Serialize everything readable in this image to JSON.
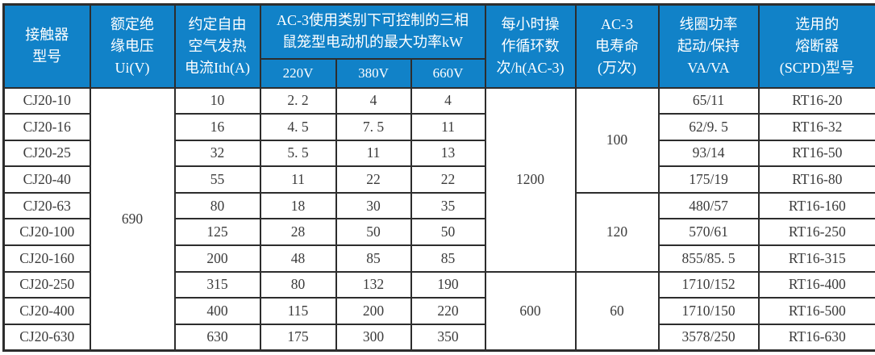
{
  "colors": {
    "header_bg": "#1182c8",
    "header_text": "#ffffff",
    "body_text": "#3b3b3b",
    "border": "#2d2d2d"
  },
  "table": {
    "header_rows": [
      [
        {
          "label": "接触器\n型号",
          "name": "header-contactor-model",
          "rowspan": 2
        },
        {
          "label": "额定绝\n缘电压\nUi(V)",
          "name": "header-rated-insulation-voltage",
          "rowspan": 2
        },
        {
          "label": "约定自由\n空气发热\n电流Ith(A)",
          "name": "header-thermal-current",
          "rowspan": 2
        },
        {
          "label": "AC-3使用类别下可控制的三相\n鼠笼型电动机的最大功率kW",
          "name": "header-ac3-max-power",
          "colspan": 3
        },
        {
          "label": "每小时操\n作循环数\n次/h(AC-3)",
          "name": "header-operating-cycles-per-hour",
          "rowspan": 2
        },
        {
          "label": "AC-3\n电寿命\n(万次)",
          "name": "header-ac3-electrical-life",
          "rowspan": 2
        },
        {
          "label": "线圈功率\n起动/保持\nVA/VA",
          "name": "header-coil-power",
          "rowspan": 2
        },
        {
          "label": "选用的\n熔断器\n(SCPD)型号",
          "name": "header-fuse-model",
          "rowspan": 2
        }
      ],
      [
        {
          "label": "220V",
          "name": "header-voltage-220v",
          "sub": true
        },
        {
          "label": "380V",
          "name": "header-voltage-380v",
          "sub": true
        },
        {
          "label": "660V",
          "name": "header-voltage-660v",
          "sub": true
        }
      ]
    ],
    "rows": [
      [
        {
          "v": "CJ20-10",
          "name": "model-cell"
        },
        {
          "v": "690",
          "name": "insulation-voltage-cell",
          "rowspan": 10
        },
        {
          "v": "10"
        },
        {
          "v": "2. 2"
        },
        {
          "v": "4"
        },
        {
          "v": "4"
        },
        {
          "v": "1200",
          "name": "cycles-cell",
          "rowspan": 7
        },
        {
          "v": "100",
          "name": "life-cell",
          "rowspan": 4
        },
        {
          "v": "65/11"
        },
        {
          "v": "RT16-20"
        }
      ],
      [
        {
          "v": "CJ20-16",
          "name": "model-cell"
        },
        {
          "v": "16"
        },
        {
          "v": "4. 5"
        },
        {
          "v": "7. 5"
        },
        {
          "v": "11"
        },
        {
          "v": "62/9. 5"
        },
        {
          "v": "RT16-32"
        }
      ],
      [
        {
          "v": "CJ20-25",
          "name": "model-cell"
        },
        {
          "v": "32"
        },
        {
          "v": "5. 5"
        },
        {
          "v": "11"
        },
        {
          "v": "13"
        },
        {
          "v": "93/14"
        },
        {
          "v": "RT16-50"
        }
      ],
      [
        {
          "v": "CJ20-40",
          "name": "model-cell"
        },
        {
          "v": "55"
        },
        {
          "v": "11"
        },
        {
          "v": "22"
        },
        {
          "v": "22"
        },
        {
          "v": "175/19"
        },
        {
          "v": "RT16-80"
        }
      ],
      [
        {
          "v": "CJ20-63",
          "name": "model-cell"
        },
        {
          "v": "80"
        },
        {
          "v": "18"
        },
        {
          "v": "30"
        },
        {
          "v": "35"
        },
        {
          "v": "120",
          "name": "life-cell",
          "rowspan": 3
        },
        {
          "v": "480/57"
        },
        {
          "v": "RT16-160"
        }
      ],
      [
        {
          "v": "CJ20-100",
          "name": "model-cell"
        },
        {
          "v": "125"
        },
        {
          "v": "28"
        },
        {
          "v": "50"
        },
        {
          "v": "50"
        },
        {
          "v": "570/61"
        },
        {
          "v": "RT16-250"
        }
      ],
      [
        {
          "v": "CJ20-160",
          "name": "model-cell"
        },
        {
          "v": "200"
        },
        {
          "v": "48"
        },
        {
          "v": "85"
        },
        {
          "v": "85"
        },
        {
          "v": "855/85. 5"
        },
        {
          "v": "RT16-315"
        }
      ],
      [
        {
          "v": "CJ20-250",
          "name": "model-cell"
        },
        {
          "v": "315"
        },
        {
          "v": "80"
        },
        {
          "v": "132"
        },
        {
          "v": "190"
        },
        {
          "v": "600",
          "name": "cycles-cell",
          "rowspan": 3
        },
        {
          "v": "60",
          "name": "life-cell",
          "rowspan": 3
        },
        {
          "v": "1710/152"
        },
        {
          "v": "RT16-400"
        }
      ],
      [
        {
          "v": "CJ20-400",
          "name": "model-cell"
        },
        {
          "v": "400"
        },
        {
          "v": "115"
        },
        {
          "v": "200"
        },
        {
          "v": "220"
        },
        {
          "v": "1710/150"
        },
        {
          "v": "RT16-500"
        }
      ],
      [
        {
          "v": "CJ20-630",
          "name": "model-cell"
        },
        {
          "v": "630"
        },
        {
          "v": "175"
        },
        {
          "v": "300"
        },
        {
          "v": "350"
        },
        {
          "v": "3578/250"
        },
        {
          "v": "RT16-630"
        }
      ]
    ]
  }
}
